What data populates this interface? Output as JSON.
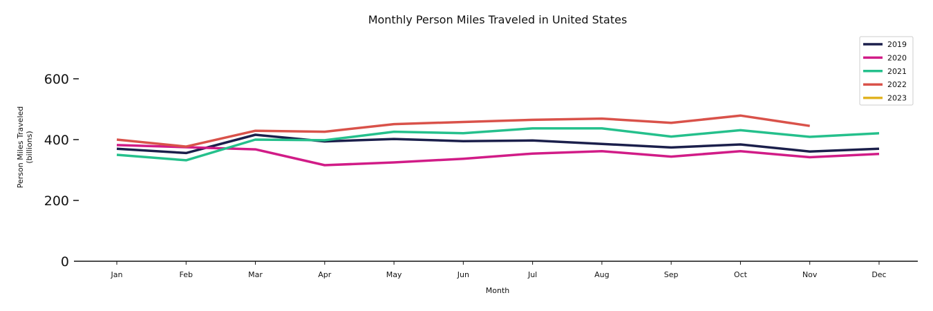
{
  "chart_data": {
    "type": "line",
    "title": "Monthly Person Miles Traveled in United States",
    "xlabel": "Month",
    "ylabel_lines": [
      "Person Miles Traveled",
      "(billions)"
    ],
    "categories": [
      "Jan",
      "Feb",
      "Mar",
      "Apr",
      "May",
      "Jun",
      "Jul",
      "Aug",
      "Sep",
      "Oct",
      "Nov",
      "Dec"
    ],
    "ylim": [
      0,
      750
    ],
    "yticks": [
      0,
      200,
      400,
      600
    ],
    "grid": false,
    "legend_position": "top-right",
    "series": [
      {
        "name": "2019",
        "color": "#1b1f4b",
        "values": [
          370,
          356,
          416,
          394,
          402,
          395,
          397,
          386,
          374,
          384,
          361,
          370
        ]
      },
      {
        "name": "2020",
        "color": "#d11c87",
        "values": [
          382,
          375,
          368,
          316,
          325,
          337,
          354,
          362,
          344,
          362,
          342,
          353
        ]
      },
      {
        "name": "2021",
        "color": "#25c08c",
        "values": [
          350,
          332,
          400,
          398,
          426,
          421,
          437,
          437,
          410,
          431,
          409,
          421
        ]
      },
      {
        "name": "2022",
        "color": "#d9524a",
        "values": [
          400,
          377,
          429,
          426,
          451,
          458,
          465,
          469,
          455,
          479,
          445,
          null
        ]
      },
      {
        "name": "2023",
        "color": "#e1b322",
        "values": [
          null,
          null,
          null,
          null,
          null,
          null,
          null,
          null,
          null,
          null,
          null,
          null
        ]
      }
    ]
  }
}
